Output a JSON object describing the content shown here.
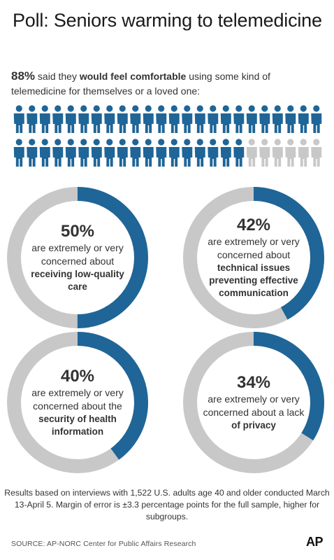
{
  "title": "Poll: Seniors warming to telemedicine",
  "intro": {
    "pct": "88%",
    "pre": " said they ",
    "bold": "would feel comfortable",
    "post": " using some kind of telemedicine for themselves or a loved one:"
  },
  "colors": {
    "accent": "#1f6597",
    "muted": "#c8c8c8",
    "text": "#333333"
  },
  "chart_data": [
    {
      "type": "pictograph",
      "value": 88,
      "total": 100,
      "icon": "person-icon",
      "label": "88% said they would feel comfortable using some kind of telemedicine for themselves or a loved one:"
    },
    {
      "type": "donut",
      "value": 50,
      "percent_label": "50%",
      "line": "are extremely or very concerned about",
      "strong": "receiving  low-quality\ncare"
    },
    {
      "type": "donut",
      "value": 42,
      "percent_label": "42%",
      "line": "are extremely or very concerned about",
      "strong": "technical issues\npreventing effective\ncommunication"
    },
    {
      "type": "donut",
      "value": 40,
      "percent_label": "40%",
      "line": "are extremely or very concerned about the",
      "strong": "security of health\ninformation"
    },
    {
      "type": "donut",
      "value": 34,
      "percent_label": "34%",
      "line": "are extremely or very concerned about a lack",
      "strong": "of privacy"
    }
  ],
  "note": "Results based on interviews with 1,522 U.S. adults age 40 and older conducted March 13-April 5. Margin of error is  ±3.3 percentage points for the full sample, higher for subgroups.",
  "source": "SOURCE: AP-NORC Center for Public Affairs Research",
  "logo": "AP"
}
